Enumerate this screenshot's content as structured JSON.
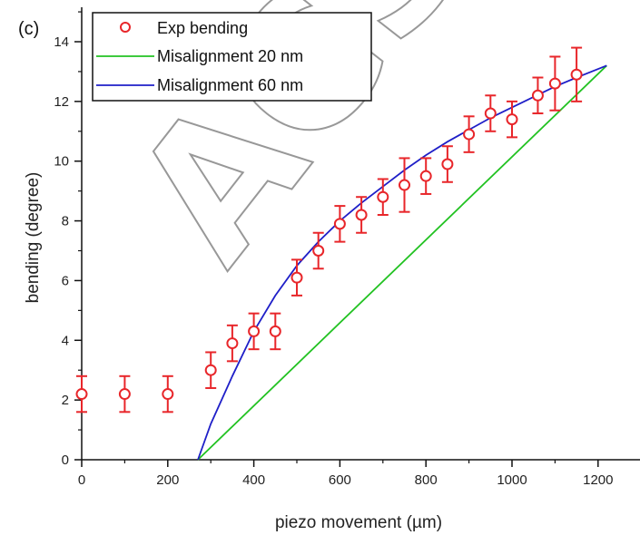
{
  "panel_label": "(c)",
  "watermark_text": "ACS",
  "colors": {
    "experimental": "#e8262a",
    "misalignment_20": "#22c222",
    "misalignment_60": "#1f1fc8",
    "axis": "#111111"
  },
  "chart_data": {
    "type": "scatter",
    "xlabel": "piezo movement (µm)",
    "ylabel": "bending (degree)",
    "xlim": [
      0,
      1300
    ],
    "ylim": [
      0,
      15
    ],
    "x_ticks": [
      0,
      200,
      400,
      600,
      800,
      1000,
      1200
    ],
    "y_ticks": [
      0,
      2,
      4,
      6,
      8,
      10,
      12,
      14
    ],
    "legend_position": "top-left",
    "legend": [
      "Exp bending",
      "Misalignment 20 nm",
      "Misalignment 60 nm"
    ],
    "series": [
      {
        "name": "Exp bending",
        "kind": "points-with-error",
        "x": [
          0,
          100,
          200,
          300,
          350,
          400,
          450,
          500,
          550,
          600,
          650,
          700,
          750,
          800,
          850,
          900,
          950,
          1000,
          1060,
          1100,
          1150
        ],
        "y": [
          2.2,
          2.2,
          2.2,
          3.0,
          3.9,
          4.3,
          4.3,
          6.1,
          7.0,
          7.9,
          8.2,
          8.8,
          9.2,
          9.5,
          9.9,
          10.9,
          11.6,
          11.4,
          12.2,
          12.6,
          12.9
        ],
        "yerr": [
          0.6,
          0.6,
          0.6,
          0.6,
          0.6,
          0.6,
          0.6,
          0.6,
          0.6,
          0.6,
          0.6,
          0.6,
          0.9,
          0.6,
          0.6,
          0.6,
          0.6,
          0.6,
          0.6,
          0.9,
          0.9
        ]
      },
      {
        "name": "Misalignment 20 nm",
        "kind": "line",
        "x": [
          270,
          1220
        ],
        "y": [
          0,
          13.2
        ]
      },
      {
        "name": "Misalignment 60 nm",
        "kind": "line",
        "x": [
          270,
          300,
          350,
          400,
          450,
          500,
          550,
          600,
          650,
          700,
          750,
          800,
          850,
          900,
          950,
          1000,
          1050,
          1100,
          1150,
          1220
        ],
        "y": [
          0.0,
          1.2,
          2.8,
          4.3,
          5.5,
          6.5,
          7.3,
          8.0,
          8.6,
          9.15,
          9.7,
          10.2,
          10.65,
          11.05,
          11.45,
          11.8,
          12.15,
          12.5,
          12.8,
          13.2
        ]
      }
    ]
  }
}
